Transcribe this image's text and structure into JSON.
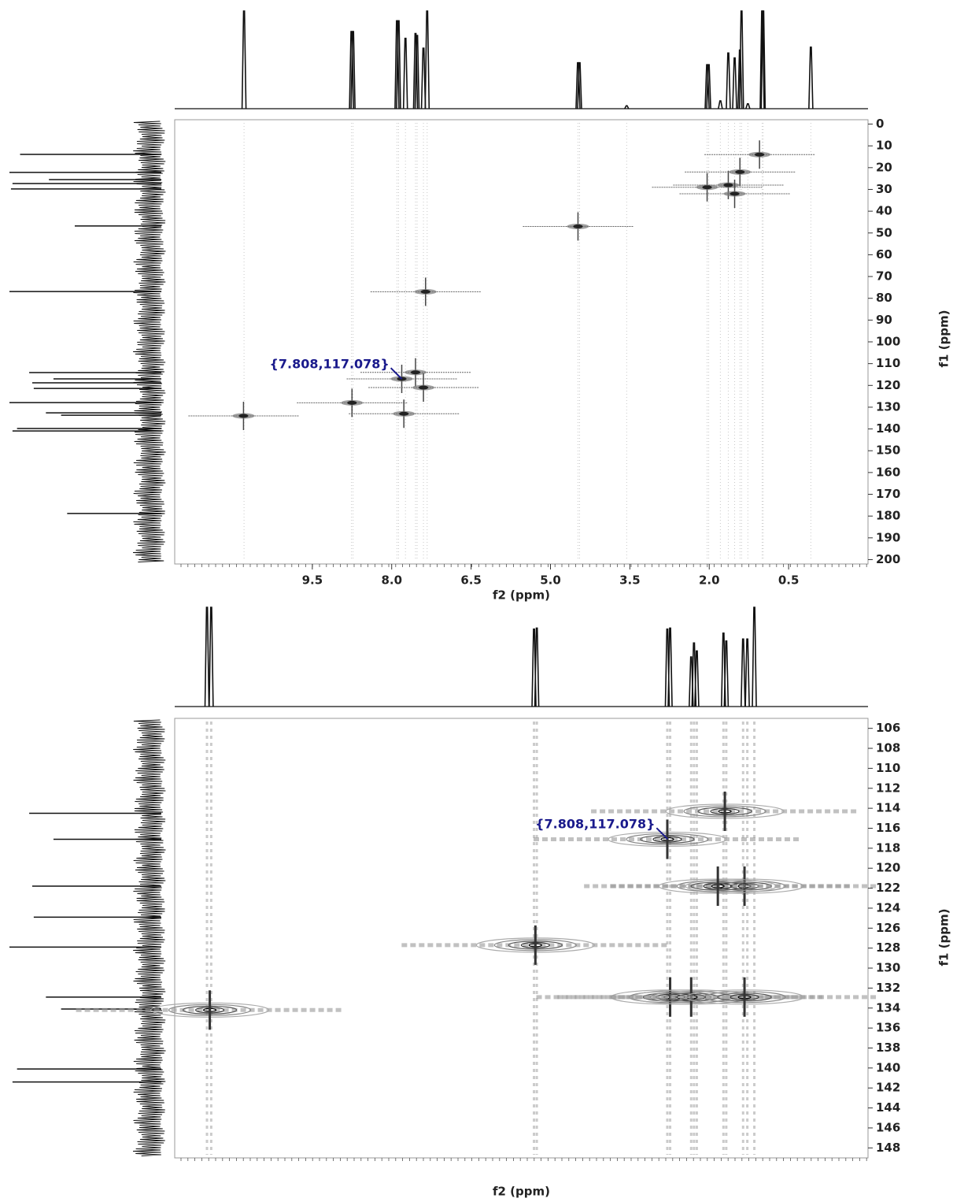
{
  "chart_data": [
    {
      "type": "contour",
      "xlabel": "f2 (ppm)",
      "ylabel": "f1 (ppm)",
      "xlim": [
        12.1,
        -1.0
      ],
      "ylim": [
        202,
        -2
      ],
      "xticks": [
        9.5,
        {
          "value": 8,
          "label": "8.0"
        },
        6.5,
        {
          "value": 5,
          "label": "5.0"
        },
        3.5,
        {
          "value": 2,
          "label": "2.0"
        },
        0.5
      ],
      "yticks": [
        0,
        10,
        20,
        30,
        40,
        50,
        60,
        70,
        80,
        90,
        100,
        110,
        120,
        130,
        140,
        150,
        160,
        170,
        180,
        190,
        200
      ],
      "x": [
        10.8,
        8.75,
        7.81,
        7.77,
        7.55,
        7.4,
        7.36,
        4.48,
        2.04,
        1.64,
        1.42,
        1.52,
        1.05
      ],
      "values": [
        134,
        128,
        117,
        133,
        114,
        121,
        77,
        47,
        29,
        28,
        22,
        32,
        14
      ],
      "annotation": {
        "text": "{7.808,117.078}",
        "x": 7.808,
        "y": 117.078
      },
      "projection_f2": {
        "x": [
          10.79,
          8.76,
          8.73,
          7.9,
          7.87,
          7.74,
          7.55,
          7.52,
          7.4,
          7.33,
          4.48,
          4.45,
          3.56,
          2.04,
          2.01,
          1.79,
          1.64,
          1.52,
          1.42,
          1.39,
          1.27,
          1.0,
          0.98,
          0.08
        ],
        "values": [
          100,
          79,
          79,
          90,
          90,
          72,
          77,
          75,
          62,
          100,
          47,
          47,
          3,
          45,
          45,
          8,
          57,
          52,
          60,
          100,
          5,
          100,
          100,
          63
        ]
      },
      "projection_f1": {
        "y": [
          13.9,
          22.2,
          25.5,
          27.3,
          29.8,
          46.8,
          76.9,
          114.1,
          117.0,
          118.8,
          121.4,
          127.9,
          132.6,
          133.7,
          139.8,
          140.9,
          178.8
        ],
        "values": [
          93,
          100,
          74,
          98,
          99,
          57,
          100,
          87,
          71,
          85,
          84,
          100,
          76,
          66,
          95,
          98,
          62
        ]
      }
    },
    {
      "type": "contour",
      "xlabel": "f2 (ppm)",
      "ylabel": "f1 (ppm)",
      "xlim": [
        11.32,
        6.38
      ],
      "ylim": [
        149,
        105
      ],
      "yticks": [
        106,
        108,
        110,
        112,
        114,
        116,
        118,
        120,
        122,
        124,
        126,
        128,
        130,
        132,
        134,
        136,
        138,
        140,
        142,
        144,
        146,
        148
      ],
      "x": [
        11.07,
        8.75,
        7.81,
        7.79,
        7.64,
        7.4,
        7.26,
        7.45,
        7.26
      ],
      "values": [
        134.2,
        127.7,
        117.1,
        132.9,
        132.9,
        114.3,
        121.8,
        121.8,
        132.9
      ],
      "annotation": {
        "text": "{7.808,117.078}",
        "x": 7.808,
        "y": 117.078
      },
      "projection_f2": {
        "x": [
          11.09,
          11.06,
          8.76,
          8.74,
          7.81,
          7.79,
          7.64,
          7.62,
          7.6,
          7.41,
          7.39,
          7.27,
          7.24,
          7.19
        ],
        "values": [
          100,
          100,
          78,
          79,
          78,
          79,
          50,
          64,
          56,
          74,
          66,
          68,
          68,
          100
        ]
      },
      "projection_f1": {
        "y": [
          114.5,
          117.1,
          121.8,
          124.9,
          127.9,
          132.9,
          134.1,
          140.1,
          141.4
        ],
        "values": [
          87,
          71,
          85,
          84,
          100,
          76,
          66,
          95,
          98
        ]
      }
    }
  ]
}
